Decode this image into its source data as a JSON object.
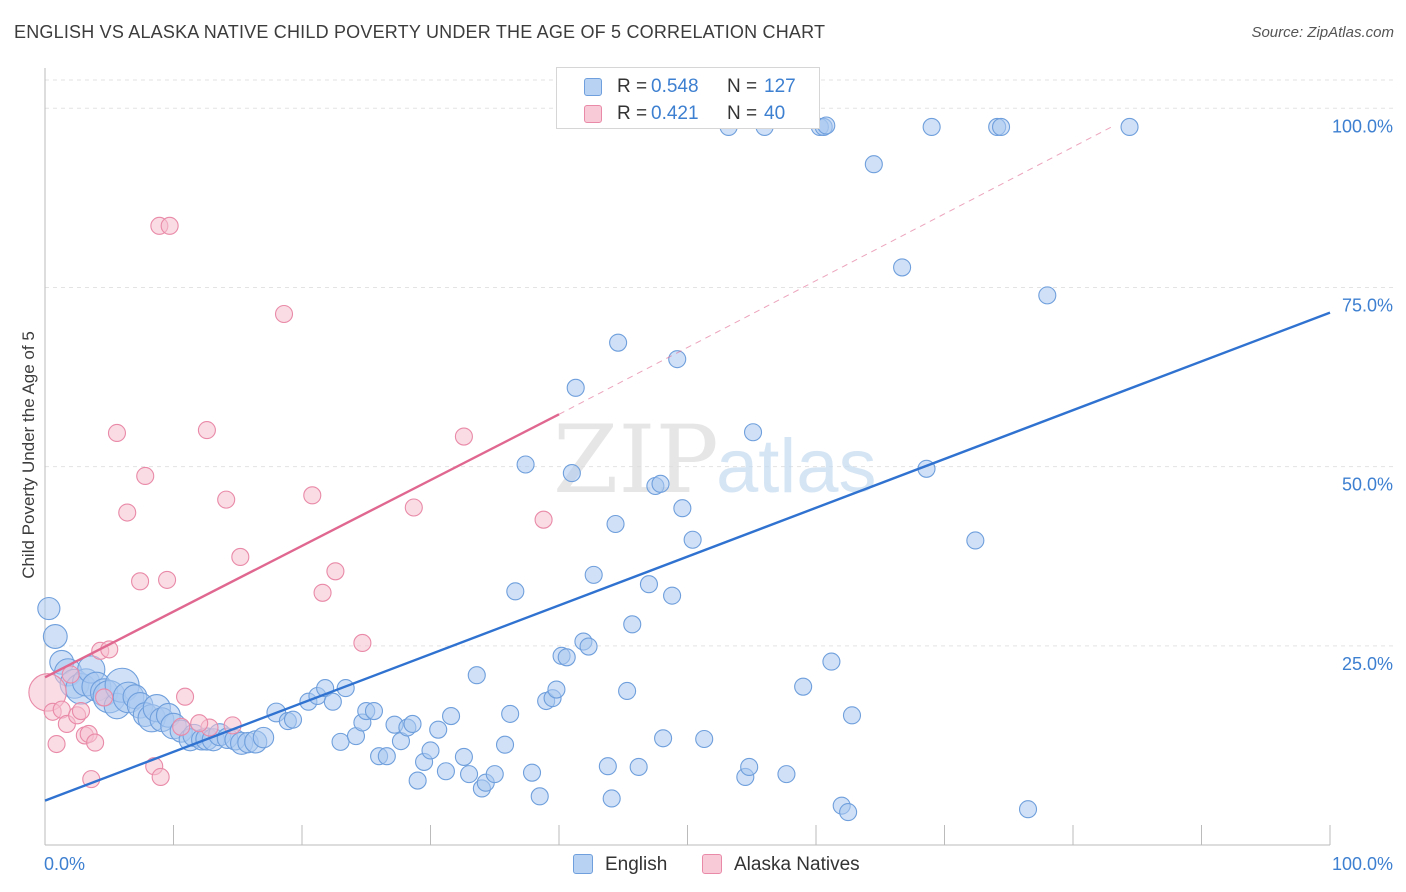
{
  "header": {
    "title": "ENGLISH VS ALASKA NATIVE CHILD POVERTY UNDER THE AGE OF 5 CORRELATION CHART",
    "source": "Source: ZipAtlas.com"
  },
  "watermark": {
    "zip": "ZIP",
    "atlas": "atlas"
  },
  "legend": {
    "rows": [
      {
        "r_label": "R =",
        "r_value": "0.548",
        "n_label": "N =",
        "n_value": "127"
      },
      {
        "r_label": "R =",
        "r_value": "0.421",
        "n_label": "N =",
        "n_value": "40"
      }
    ]
  },
  "bottom_legend": {
    "english": "English",
    "alaska": "Alaska Natives"
  },
  "chart_data": {
    "type": "scatter",
    "ylabel": "Child Poverty Under the Age of 5",
    "xlim": [
      0,
      100
    ],
    "ylim": [
      0,
      100
    ],
    "x_tick_labels": [
      "0.0%",
      "100.0%"
    ],
    "y_ticks": [
      {
        "value": 100,
        "label": "100.0%"
      },
      {
        "value": 75,
        "label": "75.0%"
      },
      {
        "value": 50,
        "label": "50.0%"
      },
      {
        "value": 25,
        "label": "25.0%"
      }
    ],
    "grid": true,
    "colors": {
      "english_fill": "#a9c8f0",
      "english_stroke": "#6f9fdc",
      "english_line": "#2f72d0",
      "alaska_fill": "#f6bfd0",
      "alaska_stroke": "#e98aa8",
      "alaska_line": "#e06890",
      "tick_text": "#3d7fd0",
      "grid": "#e3e3e3"
    },
    "series": [
      {
        "name": "English",
        "r": 0.548,
        "n": 127,
        "trend": {
          "x": [
            0,
            100
          ],
          "y": [
            3.4,
            71.5
          ]
        },
        "points": [
          [
            0.3,
            30.2,
            1.3
          ],
          [
            0.8,
            26.3,
            1.4
          ],
          [
            1.3,
            22.7,
            1.4
          ],
          [
            1.8,
            21.3,
            1.6
          ],
          [
            2.3,
            19.7,
            1.7
          ],
          [
            2.8,
            19.0,
            1.8
          ],
          [
            3.2,
            19.9,
            1.6
          ],
          [
            3.6,
            21.7,
            1.6
          ],
          [
            4.0,
            19.3,
            1.7
          ],
          [
            4.6,
            18.5,
            1.6
          ],
          [
            5.0,
            17.9,
            1.9
          ],
          [
            5.6,
            16.6,
            1.5
          ],
          [
            6.0,
            19.5,
            2.0
          ],
          [
            6.5,
            17.8,
            1.8
          ],
          [
            7.0,
            17.9,
            1.4
          ],
          [
            7.4,
            16.7,
            1.5
          ],
          [
            7.8,
            15.4,
            1.4
          ],
          [
            8.3,
            14.9,
            1.6
          ],
          [
            8.7,
            16.3,
            1.6
          ],
          [
            9.1,
            14.7,
            1.4
          ],
          [
            9.6,
            15.3,
            1.4
          ],
          [
            10.0,
            13.8,
            1.5
          ],
          [
            10.6,
            13.1,
            1.3
          ],
          [
            11.3,
            11.9,
            1.3
          ],
          [
            11.6,
            12.5,
            1.3
          ],
          [
            12.2,
            11.9,
            1.2
          ],
          [
            12.6,
            12.0,
            1.3
          ],
          [
            13.1,
            11.9,
            1.3
          ],
          [
            13.6,
            12.6,
            1.3
          ],
          [
            14.2,
            12.1,
            1.2
          ],
          [
            14.8,
            11.9,
            1.2
          ],
          [
            15.3,
            11.4,
            1.3
          ],
          [
            15.8,
            11.5,
            1.2
          ],
          [
            16.4,
            11.6,
            1.3
          ],
          [
            17.0,
            12.2,
            1.2
          ],
          [
            18.0,
            15.7,
            1.1
          ],
          [
            18.9,
            14.5,
            1.0
          ],
          [
            19.3,
            14.7,
            1.0
          ],
          [
            20.5,
            17.2,
            1.0
          ],
          [
            21.2,
            18.0,
            1.0
          ],
          [
            21.8,
            19.1,
            1.0
          ],
          [
            22.4,
            17.2,
            1.0
          ],
          [
            23.0,
            11.6,
            1.0
          ],
          [
            23.4,
            19.1,
            1.0
          ],
          [
            24.2,
            12.4,
            1.0
          ],
          [
            24.7,
            14.3,
            1.0
          ],
          [
            25.0,
            15.9,
            1.0
          ],
          [
            25.6,
            15.9,
            1.0
          ],
          [
            26.0,
            9.6,
            1.0
          ],
          [
            26.6,
            9.6,
            1.0
          ],
          [
            27.2,
            14.0,
            1.0
          ],
          [
            27.7,
            11.7,
            1.0
          ],
          [
            28.2,
            13.6,
            1.0
          ],
          [
            28.6,
            14.1,
            1.0
          ],
          [
            29.0,
            6.2,
            1.0
          ],
          [
            29.5,
            8.8,
            1.0
          ],
          [
            30.0,
            10.4,
            1.0
          ],
          [
            30.6,
            13.3,
            1.0
          ],
          [
            31.2,
            7.5,
            1.0
          ],
          [
            31.6,
            15.2,
            1.0
          ],
          [
            32.6,
            9.5,
            1.0
          ],
          [
            33.0,
            7.1,
            1.0
          ],
          [
            33.6,
            20.9,
            1.0
          ],
          [
            34.0,
            5.1,
            1.0
          ],
          [
            34.3,
            5.9,
            1.0
          ],
          [
            35.0,
            7.1,
            1.0
          ],
          [
            35.8,
            11.2,
            1.0
          ],
          [
            36.2,
            15.5,
            1.0
          ],
          [
            36.6,
            32.6,
            1.0
          ],
          [
            37.4,
            50.3,
            1.0
          ],
          [
            37.9,
            7.3,
            1.0
          ],
          [
            38.5,
            4.0,
            1.0
          ],
          [
            39.0,
            17.3,
            1.0
          ],
          [
            39.5,
            17.7,
            1.0
          ],
          [
            39.8,
            18.9,
            1.0
          ],
          [
            40.2,
            23.6,
            1.0
          ],
          [
            40.6,
            23.4,
            1.0
          ],
          [
            41.0,
            49.1,
            1.0
          ],
          [
            41.3,
            61.0,
            1.0
          ],
          [
            41.9,
            25.6,
            1.0
          ],
          [
            42.3,
            24.9,
            1.0
          ],
          [
            42.7,
            34.9,
            1.0
          ],
          [
            43.8,
            8.2,
            1.0
          ],
          [
            44.1,
            3.7,
            1.0
          ],
          [
            44.4,
            42.0,
            1.0
          ],
          [
            44.6,
            67.3,
            1.0
          ],
          [
            45.3,
            18.7,
            1.0
          ],
          [
            45.7,
            28.0,
            1.0
          ],
          [
            46.2,
            8.1,
            1.0
          ],
          [
            47.0,
            33.6,
            1.0
          ],
          [
            47.5,
            47.3,
            1.0
          ],
          [
            47.9,
            47.6,
            1.0
          ],
          [
            48.1,
            12.1,
            1.0
          ],
          [
            48.8,
            32.0,
            1.0
          ],
          [
            49.2,
            65.0,
            1.0
          ],
          [
            49.6,
            44.2,
            1.0
          ],
          [
            50.4,
            39.8,
            1.0
          ],
          [
            51.3,
            12.0,
            1.0
          ],
          [
            53.2,
            97.4,
            1.0
          ],
          [
            54.5,
            6.7,
            1.0
          ],
          [
            54.8,
            8.1,
            1.0
          ],
          [
            55.1,
            54.8,
            1.0
          ],
          [
            56.0,
            97.4,
            1.0
          ],
          [
            57.7,
            7.1,
            1.0
          ],
          [
            59.0,
            19.3,
            1.0
          ],
          [
            60.3,
            97.4,
            1.0
          ],
          [
            60.6,
            97.4,
            1.0
          ],
          [
            60.8,
            97.6,
            1.0
          ],
          [
            61.2,
            22.8,
            1.0
          ],
          [
            62.0,
            2.7,
            1.0
          ],
          [
            62.5,
            1.8,
            1.0
          ],
          [
            62.8,
            15.3,
            1.0
          ],
          [
            64.5,
            92.2,
            1.0
          ],
          [
            66.7,
            77.8,
            1.0
          ],
          [
            68.6,
            49.7,
            1.0
          ],
          [
            69.0,
            97.4,
            1.0
          ],
          [
            72.4,
            39.7,
            1.0
          ],
          [
            74.1,
            97.4,
            1.0
          ],
          [
            74.4,
            97.4,
            1.0
          ],
          [
            76.5,
            2.2,
            1.0
          ],
          [
            78.0,
            73.9,
            1.0
          ],
          [
            84.4,
            97.4,
            1.0
          ]
        ]
      },
      {
        "name": "Alaska Natives",
        "r": 0.421,
        "n": 40,
        "trend": {
          "x": [
            0,
            40
          ],
          "y": [
            20.6,
            57.3
          ]
        },
        "trend_extension": {
          "x": [
            40,
            83
          ],
          "y": [
            57.3,
            97.4
          ]
        },
        "points": [
          [
            0.2,
            18.5,
            2.2
          ],
          [
            0.6,
            15.8,
            1.0
          ],
          [
            0.9,
            11.3,
            1.0
          ],
          [
            1.3,
            16.1,
            1.0
          ],
          [
            1.7,
            14.1,
            1.0
          ],
          [
            2.0,
            21.0,
            1.0
          ],
          [
            2.5,
            15.3,
            1.0
          ],
          [
            2.8,
            15.9,
            1.0
          ],
          [
            3.1,
            12.5,
            1.0
          ],
          [
            3.4,
            12.7,
            1.0
          ],
          [
            3.6,
            6.4,
            1.0
          ],
          [
            3.9,
            11.5,
            1.0
          ],
          [
            4.3,
            24.3,
            1.0
          ],
          [
            4.6,
            17.8,
            1.0
          ],
          [
            5.0,
            24.5,
            1.0
          ],
          [
            5.6,
            54.7,
            1.0
          ],
          [
            6.4,
            43.6,
            1.0
          ],
          [
            7.4,
            34.0,
            1.0
          ],
          [
            7.8,
            48.7,
            1.0
          ],
          [
            8.5,
            8.2,
            1.0
          ],
          [
            8.9,
            83.6,
            1.0
          ],
          [
            9.0,
            6.7,
            1.0
          ],
          [
            9.5,
            34.2,
            1.0
          ],
          [
            9.7,
            83.6,
            1.0
          ],
          [
            10.6,
            13.7,
            1.0
          ],
          [
            10.9,
            17.9,
            1.0
          ],
          [
            12.6,
            55.1,
            1.0
          ],
          [
            12.8,
            13.6,
            1.0
          ],
          [
            14.1,
            45.4,
            1.0
          ],
          [
            14.6,
            13.9,
            1.0
          ],
          [
            15.2,
            37.4,
            1.0
          ],
          [
            18.6,
            71.3,
            1.0
          ],
          [
            20.8,
            46.0,
            1.0
          ],
          [
            21.6,
            32.4,
            1.0
          ],
          [
            22.6,
            35.4,
            1.0
          ],
          [
            24.7,
            25.4,
            1.0
          ],
          [
            28.7,
            44.3,
            1.0
          ],
          [
            32.6,
            54.2,
            1.0
          ],
          [
            38.8,
            42.6,
            1.0
          ],
          [
            12.0,
            14.2,
            1.0
          ]
        ]
      }
    ]
  }
}
